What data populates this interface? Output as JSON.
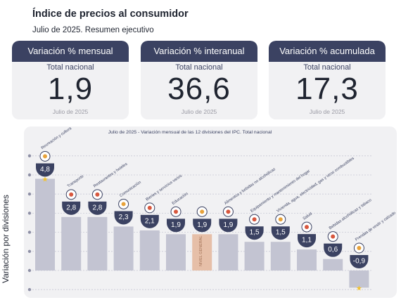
{
  "header": {
    "title": "Índice de precios al consumidor",
    "subtitle": "Julio de 2025. Resumen ejecutivo"
  },
  "cards": [
    {
      "title": "Variación % mensual",
      "scope": "Total nacional",
      "value": "1,9",
      "period": "Julio de 2025"
    },
    {
      "title": "Variación % interanual",
      "scope": "Total nacional",
      "value": "36,6",
      "period": "Julio de 2025"
    },
    {
      "title": "Variación % acumulada",
      "scope": "Total nacional",
      "value": "17,3",
      "period": "Julio de 2025"
    }
  ],
  "colors": {
    "navy": "#3b4262",
    "bar": "#c3c4d2",
    "highlight": "#e6bfa8",
    "panel": "#f1f1f3",
    "star": "#f2c230"
  },
  "chart_data": {
    "type": "bar",
    "title": "Julio de 2025 - Variación mensual de las 12 divisiones del IPC. Total nacional",
    "ylabel": "Variación por divisiones",
    "ylim": [
      -1.1,
      5.7
    ],
    "grid": true,
    "categories": [
      "Recreación y cultura",
      "Transporte",
      "Restaurantes y hoteles",
      "Comunicación",
      "Bienes y servicios varios",
      "Educación",
      "NIVEL GENERAL",
      "Alimentos y bebidas no alcohólicas",
      "Equipamiento y mantenimiento del hogar",
      "Vivienda, agua, electricidad, gas y otros combustibles",
      "Salud",
      "Bebidas alcohólicas y tabaco",
      "Prendas de vestir y calzado"
    ],
    "values": [
      4.8,
      2.8,
      2.8,
      2.3,
      2.1,
      1.9,
      1.9,
      1.9,
      1.5,
      1.5,
      1.1,
      0.6,
      -0.9
    ],
    "labels": [
      "4,8",
      "2,8",
      "2,8",
      "2,3",
      "2,1",
      "1,9",
      "1,9",
      "1,9",
      "1,5",
      "1,5",
      "1,1",
      "0,6",
      "-0,9"
    ],
    "highlight_index": 6,
    "icons": [
      "party-hat-icon",
      "car-icon",
      "dish-icon",
      "phone-icon",
      "scissors-icon",
      "book-icon",
      "basket-icon",
      "basket-icon",
      "pot-icon",
      "bulb-icon",
      "health-cross-icon",
      "bottle-icon",
      "shirt-icon"
    ],
    "stars": [
      0,
      12
    ]
  }
}
